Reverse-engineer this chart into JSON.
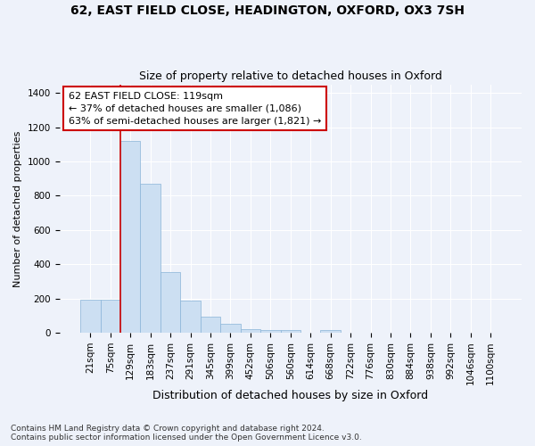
{
  "title1": "62, EAST FIELD CLOSE, HEADINGTON, OXFORD, OX3 7SH",
  "title2": "Size of property relative to detached houses in Oxford",
  "xlabel": "Distribution of detached houses by size in Oxford",
  "ylabel": "Number of detached properties",
  "footnote": "Contains HM Land Registry data © Crown copyright and database right 2024.\nContains public sector information licensed under the Open Government Licence v3.0.",
  "bar_labels": [
    "21sqm",
    "75sqm",
    "129sqm",
    "183sqm",
    "237sqm",
    "291sqm",
    "345sqm",
    "399sqm",
    "452sqm",
    "506sqm",
    "560sqm",
    "614sqm",
    "668sqm",
    "722sqm",
    "776sqm",
    "830sqm",
    "884sqm",
    "938sqm",
    "992sqm",
    "1046sqm",
    "1100sqm"
  ],
  "bar_values": [
    195,
    195,
    1120,
    870,
    355,
    190,
    95,
    50,
    20,
    18,
    15,
    0,
    15,
    0,
    0,
    0,
    0,
    0,
    0,
    0,
    0
  ],
  "bar_color": "#ccdff2",
  "bar_edge_color": "#8ab4d8",
  "annotation_box_text": "62 EAST FIELD CLOSE: 119sqm\n← 37% of detached houses are smaller (1,086)\n63% of semi-detached houses are larger (1,821) →",
  "vline_x": 1.5,
  "vline_color": "#cc0000",
  "ylim": [
    0,
    1450
  ],
  "yticks": [
    0,
    200,
    400,
    600,
    800,
    1000,
    1200,
    1400
  ],
  "background_color": "#eef2fa",
  "grid_color": "#ffffff",
  "title1_fontsize": 10,
  "title2_fontsize": 9,
  "xlabel_fontsize": 9,
  "ylabel_fontsize": 8,
  "tick_fontsize": 7.5,
  "footnote_fontsize": 6.5,
  "annotation_fontsize": 8
}
